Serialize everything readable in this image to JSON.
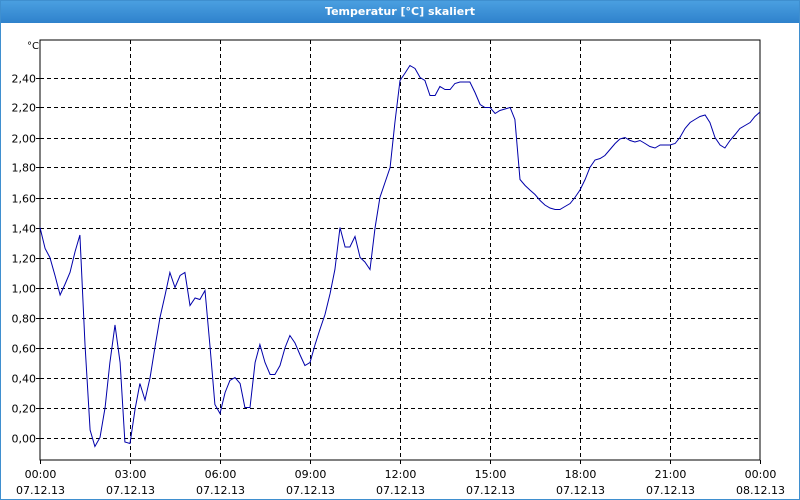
{
  "window": {
    "title": "Temperatur [°C] skaliert",
    "accent_color": "#3f8fcf"
  },
  "chart_data": {
    "type": "line",
    "title": "Temperatur [°C] skaliert",
    "ylabel": "°C",
    "xlabel": "",
    "ylim": [
      -0.15,
      2.65
    ],
    "xlim": [
      0,
      24
    ],
    "grid": true,
    "line_color": "#0000aa",
    "y_ticks": [
      0.0,
      0.2,
      0.4,
      0.6,
      0.8,
      1.0,
      1.2,
      1.4,
      1.6,
      1.8,
      2.0,
      2.2,
      2.4
    ],
    "y_tick_labels": [
      "0,00",
      "0,20",
      "0,40",
      "0,60",
      "0,80",
      "1,00",
      "1,20",
      "1,40",
      "1,60",
      "1,80",
      "2,00",
      "2,20",
      "2,40"
    ],
    "x_ticks": [
      {
        "hour": 0,
        "time": "00:00",
        "date": "07.12.13"
      },
      {
        "hour": 3,
        "time": "03:00",
        "date": "07.12.13"
      },
      {
        "hour": 6,
        "time": "06:00",
        "date": "07.12.13"
      },
      {
        "hour": 9,
        "time": "09:00",
        "date": "07.12.13"
      },
      {
        "hour": 12,
        "time": "12:00",
        "date": "07.12.13"
      },
      {
        "hour": 15,
        "time": "15:00",
        "date": "07.12.13"
      },
      {
        "hour": 18,
        "time": "18:00",
        "date": "07.12.13"
      },
      {
        "hour": 21,
        "time": "21:00",
        "date": "07.12.13"
      },
      {
        "hour": 24,
        "time": "00:00",
        "date": "08.12.13"
      }
    ],
    "series": [
      {
        "x": [
          0.0,
          0.17,
          0.33,
          0.5,
          0.67,
          0.83,
          1.0,
          1.17,
          1.33,
          1.5,
          1.67,
          1.83,
          2.0,
          2.17,
          2.33,
          2.5,
          2.67,
          2.83,
          3.0,
          3.17,
          3.33,
          3.5,
          3.67,
          3.83,
          4.0,
          4.17,
          4.33,
          4.5,
          4.67,
          4.83,
          5.0,
          5.17,
          5.33,
          5.5,
          5.67,
          5.83,
          6.0,
          6.17,
          6.33,
          6.5,
          6.67,
          6.83,
          7.0,
          7.17,
          7.33,
          7.5,
          7.67,
          7.83,
          8.0,
          8.17,
          8.33,
          8.5,
          8.67,
          8.83,
          9.0,
          9.17,
          9.33,
          9.5,
          9.67,
          9.83,
          10.0,
          10.17,
          10.33,
          10.5,
          10.67,
          10.83,
          11.0,
          11.17,
          11.33,
          11.5,
          11.67,
          11.83,
          12.0,
          12.17,
          12.33,
          12.5,
          12.67,
          12.83,
          13.0,
          13.17,
          13.33,
          13.5,
          13.67,
          13.83,
          14.0,
          14.17,
          14.33,
          14.5,
          14.67,
          14.83,
          15.0,
          15.17,
          15.33,
          15.5,
          15.67,
          15.83,
          16.0,
          16.17,
          16.33,
          16.5,
          16.67,
          16.83,
          17.0,
          17.17,
          17.33,
          17.5,
          17.67,
          17.83,
          18.0,
          18.17,
          18.33,
          18.5,
          18.67,
          18.83,
          19.0,
          19.17,
          19.33,
          19.5,
          19.67,
          19.83,
          20.0,
          20.17,
          20.33,
          20.5,
          20.67,
          20.83,
          21.0,
          21.17,
          21.33,
          21.5,
          21.67,
          21.83,
          22.0,
          22.17,
          22.33,
          22.5,
          22.67,
          22.83,
          23.0,
          23.17,
          23.33,
          23.5,
          23.67,
          23.83,
          24.0
        ],
        "y": [
          1.4,
          1.26,
          1.2,
          1.08,
          0.95,
          1.02,
          1.1,
          1.24,
          1.35,
          0.62,
          0.05,
          -0.06,
          0.0,
          0.2,
          0.5,
          0.75,
          0.5,
          -0.03,
          -0.04,
          0.19,
          0.36,
          0.25,
          0.4,
          0.6,
          0.8,
          0.95,
          1.1,
          1.0,
          1.08,
          1.1,
          0.88,
          0.93,
          0.92,
          0.98,
          0.6,
          0.22,
          0.16,
          0.3,
          0.38,
          0.4,
          0.36,
          0.2,
          0.2,
          0.5,
          0.62,
          0.5,
          0.42,
          0.42,
          0.48,
          0.6,
          0.68,
          0.63,
          0.55,
          0.48,
          0.5,
          0.62,
          0.72,
          0.82,
          0.96,
          1.12,
          1.4,
          1.27,
          1.27,
          1.34,
          1.2,
          1.17,
          1.12,
          1.4,
          1.6,
          1.7,
          1.8,
          2.1,
          2.38,
          2.43,
          2.48,
          2.46,
          2.4,
          2.38,
          2.28,
          2.28,
          2.34,
          2.32,
          2.32,
          2.36,
          2.37,
          2.37,
          2.37,
          2.3,
          2.22,
          2.2,
          2.2,
          2.16,
          2.18,
          2.19,
          2.2,
          2.12,
          1.72,
          1.68,
          1.65,
          1.62,
          1.58,
          1.55,
          1.53,
          1.52,
          1.52,
          1.54,
          1.56,
          1.6,
          1.65,
          1.72,
          1.8,
          1.85,
          1.86,
          1.88,
          1.92,
          1.96,
          1.99,
          2.0,
          1.98,
          1.97,
          1.98,
          1.96,
          1.94,
          1.93,
          1.95,
          1.95,
          1.95,
          1.96,
          2.0,
          2.06,
          2.1,
          2.12,
          2.14,
          2.15,
          2.1,
          2.0,
          1.95,
          1.93,
          1.98,
          2.02,
          2.06,
          2.08,
          2.1,
          2.14,
          2.17
        ]
      }
    ]
  }
}
